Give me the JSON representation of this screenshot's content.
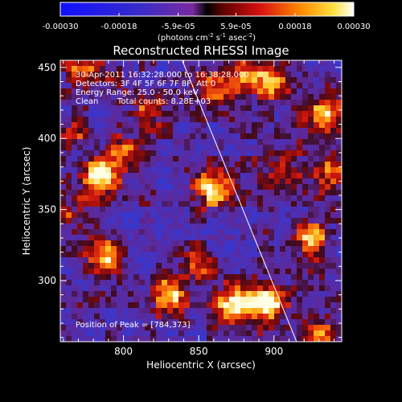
{
  "chart_data": {
    "type": "heatmap",
    "title": "Reconstructed RHESSI Image",
    "xlabel": "Heliocentric X (arcsec)",
    "ylabel": "Heliocentric Y (arcsec)",
    "xlim": [
      758,
      945
    ],
    "ylim": [
      257,
      455
    ],
    "x_ticks": [
      800,
      850,
      900
    ],
    "y_ticks": [
      300,
      350,
      400,
      450
    ],
    "colorbar": {
      "ticks": [
        "-0.00030",
        "-0.00018",
        "-5.9e-05",
        "5.9e-05",
        "0.00018",
        "0.00030"
      ],
      "tick_values": [
        -0.0003,
        -0.00018,
        -5.9e-05,
        5.9e-05,
        0.00018,
        0.0003
      ],
      "range": [
        -0.0003,
        0.0003
      ],
      "unit_prefix": "(photons cm",
      "unit_exp1": "-2",
      "unit_s": " s",
      "unit_exp2": "-1",
      "unit_asec": " asec",
      "unit_exp3": "-2",
      "unit_close": ")"
    },
    "annotations": {
      "line1": "30-Apr-2011 16:32:28.000 to 16:38:28.000",
      "line2": "Detectors: 3F 4F 5F 6F 7F 8F, Att 0",
      "line3": "Energy Range: 25.0 - 50.0 keV",
      "line4_a": "Clean",
      "line4_b": "Total counts: 8.28E+03",
      "peak": "Position of Peak = [784,373]"
    },
    "limb_line": {
      "x1": 839,
      "y1": 455,
      "x2": 915,
      "y2": 257
    },
    "peak_position": [
      784,
      373
    ],
    "hot_spots": [
      {
        "x": 784,
        "y": 373,
        "v": 1.0
      },
      {
        "x": 873,
        "y": 282,
        "v": 1.0
      },
      {
        "x": 897,
        "y": 284,
        "v": 0.95
      },
      {
        "x": 860,
        "y": 364,
        "v": 0.85
      },
      {
        "x": 788,
        "y": 318,
        "v": 0.8
      },
      {
        "x": 925,
        "y": 330,
        "v": 0.85
      },
      {
        "x": 930,
        "y": 265,
        "v": 0.6
      },
      {
        "x": 880,
        "y": 445,
        "v": 0.75
      },
      {
        "x": 773,
        "y": 445,
        "v": 0.65
      },
      {
        "x": 900,
        "y": 440,
        "v": 0.7
      },
      {
        "x": 933,
        "y": 418,
        "v": 0.7
      },
      {
        "x": 935,
        "y": 375,
        "v": 0.6
      },
      {
        "x": 830,
        "y": 290,
        "v": 0.7
      },
      {
        "x": 815,
        "y": 420,
        "v": 0.45
      },
      {
        "x": 800,
        "y": 390,
        "v": 0.5
      },
      {
        "x": 765,
        "y": 400,
        "v": 0.4
      },
      {
        "x": 848,
        "y": 310,
        "v": 0.55
      },
      {
        "x": 905,
        "y": 380,
        "v": 0.45
      },
      {
        "x": 860,
        "y": 435,
        "v": 0.5
      },
      {
        "x": 770,
        "y": 345,
        "v": 0.4
      }
    ]
  }
}
